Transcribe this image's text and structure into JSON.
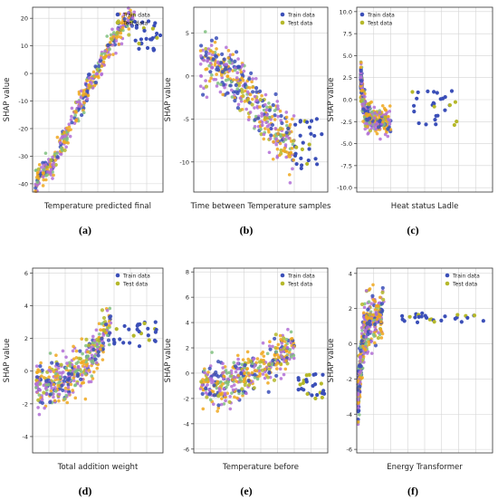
{
  "figure": {
    "colors": {
      "train": "#3b4fb8",
      "test": "#b5b82a",
      "cluster_a": "#f0a81e",
      "cluster_b": "#b16fd6",
      "cluster_c": "#7fbf7f",
      "grid": "#d3d3d3"
    }
  },
  "chart_data": [
    {
      "id": "a",
      "caption": "(a)",
      "type": "scatter",
      "xlabel": "Temperature predicted final",
      "ylabel": "SHAP value",
      "xlim": [
        0,
        1
      ],
      "ylim": [
        -43,
        24
      ],
      "yticks": [
        20,
        10,
        0,
        -10,
        -20,
        -30,
        -40
      ],
      "legend": {
        "placement": "top-right",
        "entries": [
          "Train data",
          "Test data"
        ]
      },
      "grid": true,
      "trend": [
        [
          0.02,
          -40
        ],
        [
          0.15,
          -33
        ],
        [
          0.3,
          -18
        ],
        [
          0.45,
          -3
        ],
        [
          0.6,
          11
        ],
        [
          0.72,
          19
        ],
        [
          0.78,
          21
        ]
      ],
      "tail": {
        "x_from": 0.78,
        "x_to": 0.98,
        "y_from": 8,
        "y_to": 19
      },
      "spread": 2.2
    },
    {
      "id": "b",
      "caption": "(b)",
      "type": "scatter",
      "xlabel": "Time between Temperature samples",
      "ylabel": "SHAP value",
      "xlim": [
        0,
        1
      ],
      "ylim": [
        -13.5,
        8
      ],
      "yticks": [
        5,
        0,
        -5,
        -10
      ],
      "legend": {
        "placement": "top-right",
        "entries": [
          "Train data",
          "Test data"
        ]
      },
      "grid": true,
      "trend": [
        [
          0.05,
          1.5
        ],
        [
          0.15,
          1.5
        ],
        [
          0.3,
          0
        ],
        [
          0.45,
          -3
        ],
        [
          0.6,
          -6
        ],
        [
          0.75,
          -8.5
        ]
      ],
      "tail": {
        "x_from": 0.75,
        "x_to": 0.98,
        "y_from": -11,
        "y_to": -5
      },
      "spread": 1.6
    },
    {
      "id": "c",
      "caption": "(c)",
      "type": "scatter",
      "xlabel": "Heat status Ladle",
      "ylabel": "SHAP value",
      "xlim": [
        0,
        1
      ],
      "ylim": [
        -10.5,
        10.5
      ],
      "yticks": [
        10.0,
        7.5,
        5.0,
        2.5,
        0.0,
        -2.5,
        -5.0,
        -7.5,
        -10.0
      ],
      "legend": {
        "placement": "top-left",
        "entries": [
          "Train data",
          "Test data"
        ]
      },
      "grid": true,
      "trend": [
        [
          0.03,
          2.5
        ],
        [
          0.05,
          -0.5
        ],
        [
          0.08,
          -2
        ],
        [
          0.15,
          -2.5
        ],
        [
          0.25,
          -2.5
        ]
      ],
      "tail": {
        "x_from": 0.4,
        "x_to": 0.75,
        "y_from": -3,
        "y_to": 1
      },
      "spread": 0.8
    },
    {
      "id": "d",
      "caption": "(d)",
      "type": "scatter",
      "xlabel": "Total addition weight",
      "ylabel": "SHAP value",
      "xlim": [
        0,
        1
      ],
      "ylim": [
        -5,
        6.3
      ],
      "yticks": [
        6,
        4,
        2,
        0,
        -2,
        -4
      ],
      "legend": {
        "placement": "top-right",
        "entries": [
          "Train data",
          "Test data"
        ]
      },
      "grid": true,
      "trend": [
        [
          0.02,
          -1
        ],
        [
          0.15,
          -0.8
        ],
        [
          0.3,
          -0.3
        ],
        [
          0.42,
          0.5
        ],
        [
          0.5,
          1.5
        ],
        [
          0.55,
          2.5
        ],
        [
          0.6,
          2.8
        ]
      ],
      "tail": {
        "x_from": 0.62,
        "x_to": 0.95,
        "y_from": 1.5,
        "y_to": 3
      },
      "spread": 0.7
    },
    {
      "id": "e",
      "caption": "(e)",
      "type": "scatter",
      "xlabel": "Temperature before",
      "ylabel": "SHAP value",
      "xlim": [
        0,
        1
      ],
      "ylim": [
        -6.3,
        8.3
      ],
      "yticks": [
        8,
        6,
        4,
        2,
        0,
        -2,
        -4,
        -6
      ],
      "legend": {
        "placement": "top-right",
        "entries": [
          "Train data",
          "Test data"
        ]
      },
      "grid": true,
      "trend": [
        [
          0.05,
          -1
        ],
        [
          0.2,
          -1
        ],
        [
          0.35,
          -0.5
        ],
        [
          0.5,
          0.5
        ],
        [
          0.65,
          1.5
        ],
        [
          0.75,
          2
        ]
      ],
      "tail": {
        "x_from": 0.78,
        "x_to": 0.98,
        "y_from": -2,
        "y_to": 0
      },
      "spread": 0.8
    },
    {
      "id": "f",
      "caption": "(f)",
      "type": "scatter",
      "xlabel": "Energy Transformer",
      "ylabel": "SHAP value",
      "xlim": [
        0,
        1
      ],
      "ylim": [
        -6.2,
        4.3
      ],
      "yticks": [
        4,
        2,
        0,
        -2,
        -4,
        -6
      ],
      "legend": {
        "placement": "top-right",
        "entries": [
          "Train data",
          "Test data"
        ]
      },
      "grid": true,
      "trend": [
        [
          0.01,
          -3
        ],
        [
          0.04,
          0
        ],
        [
          0.08,
          1.2
        ],
        [
          0.14,
          1.5
        ],
        [
          0.2,
          1.6
        ]
      ],
      "tail": {
        "x_from": 0.3,
        "x_to": 0.95,
        "y_from": 1.2,
        "y_to": 1.8
      },
      "spread": 0.7
    }
  ]
}
